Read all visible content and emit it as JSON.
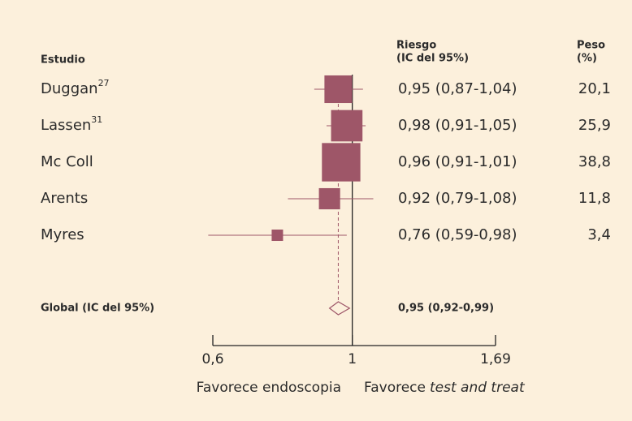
{
  "chart_data": {
    "type": "forest",
    "column_header": "Estudio",
    "risk_header": [
      "Riesgo",
      "(IC del 95%)"
    ],
    "weight_header": [
      "Peso",
      "(%)"
    ],
    "categories": [
      "Duggan",
      "Lassen",
      "Mc Coll",
      "Arents",
      "Myres"
    ],
    "superscripts": [
      "27",
      "31",
      null,
      null,
      null
    ],
    "values": [
      0.95,
      0.98,
      0.96,
      0.92,
      0.76
    ],
    "ci_low": [
      0.87,
      0.91,
      0.91,
      0.79,
      0.59
    ],
    "ci_high": [
      1.04,
      1.05,
      1.01,
      1.08,
      0.98
    ],
    "value_labels": [
      "0,95 (0,87-1,04)",
      "0,98 (0,91-1,05)",
      "0,96 (0,91-1,01)",
      "0,92 (0,79-1,08)",
      "0,76 (0,59-0,98)"
    ],
    "weights": [
      20.1,
      25.9,
      38.8,
      11.8,
      3.4
    ],
    "weight_labels": [
      "20,1",
      "25,9",
      "38,8",
      "11,8",
      "3,4"
    ],
    "overall": {
      "label": "Global (IC del 95%)",
      "value": 0.95,
      "ci_low": 0.92,
      "ci_high": 0.99,
      "value_label": "0,95 (0,92-0,99)"
    },
    "xlim": [
      0.6,
      1.69
    ],
    "xticks": [
      {
        "value": 0.6,
        "label": "0,6"
      },
      1,
      {
        "value": 1.69,
        "label": "1,69"
      }
    ],
    "log_scale": true,
    "xlabel_left": "Favorece endoscopia",
    "xlabel_right": [
      "Favorece",
      "test and treat"
    ],
    "color": "#9e5668"
  }
}
